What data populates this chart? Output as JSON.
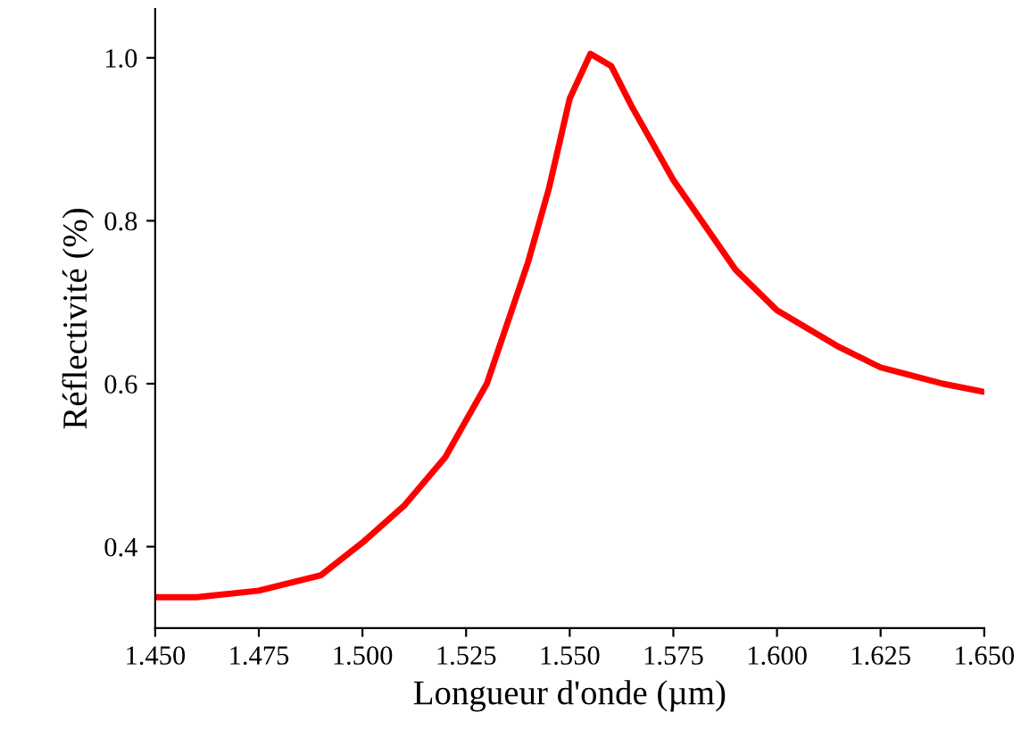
{
  "chart_data": {
    "type": "line",
    "xlabel": "Longueur d'onde (µm)",
    "ylabel": "Réflectivité (%)",
    "x": [
      1.45,
      1.46,
      1.475,
      1.49,
      1.5,
      1.51,
      1.52,
      1.53,
      1.54,
      1.545,
      1.55,
      1.555,
      1.56,
      1.565,
      1.575,
      1.59,
      1.6,
      1.615,
      1.625,
      1.64,
      1.65
    ],
    "series": [
      {
        "color": "#ff0000",
        "values": [
          0.338,
          0.338,
          0.346,
          0.365,
          0.405,
          0.45,
          0.51,
          0.6,
          0.75,
          0.84,
          0.95,
          1.005,
          0.99,
          0.94,
          0.85,
          0.74,
          0.69,
          0.645,
          0.62,
          0.6,
          0.59
        ]
      }
    ],
    "xlim": [
      1.45,
      1.65
    ],
    "ylim": [
      0.3,
      1.06
    ],
    "xticks": [
      {
        "value": 1.45,
        "label": "1.450"
      },
      {
        "value": 1.475,
        "label": "1.475"
      },
      {
        "value": 1.5,
        "label": "1.500"
      },
      {
        "value": 1.525,
        "label": "1.525"
      },
      {
        "value": 1.55,
        "label": "1.550"
      },
      {
        "value": 1.575,
        "label": "1.575"
      },
      {
        "value": 1.6,
        "label": "1.600"
      },
      {
        "value": 1.625,
        "label": "1.625"
      },
      {
        "value": 1.65,
        "label": "1.650"
      }
    ],
    "yticks": [
      0.4,
      0.6,
      0.8,
      {
        "value": 1.0,
        "label": "1.0"
      }
    ],
    "grid": false,
    "legend": false,
    "marker": "none",
    "line_style": "solid"
  }
}
